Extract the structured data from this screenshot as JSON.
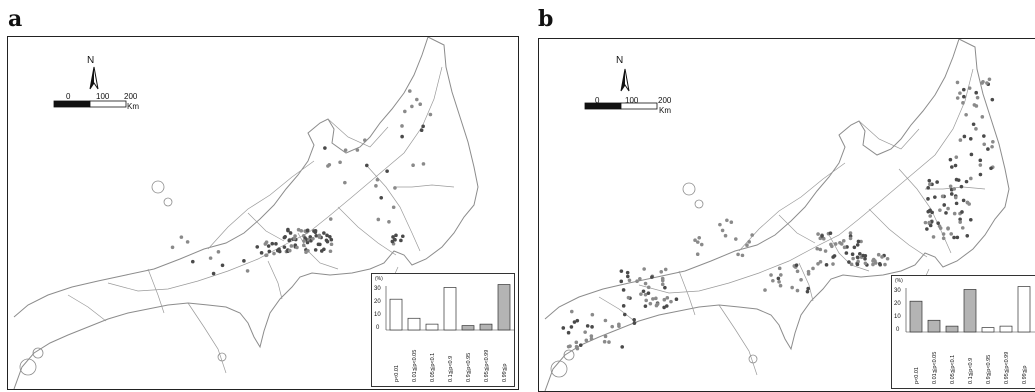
{
  "panels": [
    {
      "label": "a",
      "north_label": "N",
      "scale": {
        "ticks": [
          "0",
          "100",
          "200"
        ],
        "unit": "Km"
      },
      "inset": {
        "y_unit": "(%)",
        "y_ticks": [
          "30",
          "20",
          "10",
          "0"
        ],
        "bins": [
          "p<0.01",
          "0.01≦p<0.05",
          "0.05≦p<0.1",
          "0.1≦p<0.9",
          "0.9≦p<0.95",
          "0.95≦p<0.99",
          "0.99≦p"
        ],
        "values": [
          21,
          8,
          4,
          29,
          3,
          4,
          31
        ],
        "highlight": [
          false,
          false,
          false,
          false,
          true,
          true,
          true
        ]
      }
    },
    {
      "label": "b",
      "north_label": "N",
      "scale": {
        "ticks": [
          "0",
          "100",
          "200"
        ],
        "unit": "Km"
      },
      "inset": {
        "y_unit": "(%)",
        "y_ticks": [
          "30",
          "20",
          "10",
          "0"
        ],
        "bins": [
          "p<0.01",
          "0.01≦p<0.05",
          "0.05≦p<0.1",
          "0.1≦p<0.9",
          "0.9≦p<0.95",
          "0.95≦p<0.99",
          "0.99≦p"
        ],
        "values": [
          21,
          8,
          4,
          29,
          3,
          4,
          31
        ],
        "highlight": [
          true,
          true,
          true,
          true,
          false,
          false,
          false
        ]
      }
    }
  ],
  "colors": {
    "highlight_bar": "#b4b4b4",
    "plain_bar": "#ffffff",
    "dot": "#8a8a8a",
    "dark_dot": "#4a4a4a",
    "line": "#9a9a9a"
  }
}
